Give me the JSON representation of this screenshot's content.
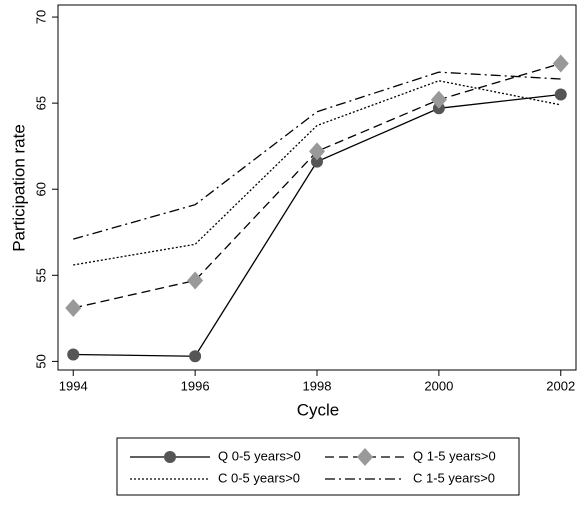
{
  "chart_data": {
    "type": "line",
    "x_label": "Cycle",
    "y_label": "Participation rate",
    "x": [
      1994,
      1996,
      1998,
      2000,
      2002
    ],
    "xlim": [
      1993.75,
      2002.25
    ],
    "xticks": [
      1994,
      1996,
      1998,
      2000,
      2002
    ],
    "ylim": [
      49.5,
      70.7
    ],
    "yticks": [
      50,
      55,
      60,
      65,
      70
    ],
    "grid": false,
    "legend": "bottom",
    "series": [
      {
        "name": "Q 0-5 years>0",
        "color": "#000000",
        "style": "solid",
        "marker": "circle",
        "marker_color": "#555555",
        "values": [
          50.4,
          50.3,
          61.6,
          64.7,
          65.5
        ]
      },
      {
        "name": "Q 1-5 years>0",
        "color": "#000000",
        "style": "dashed",
        "marker": "diamond",
        "marker_color": "#999999",
        "values": [
          53.1,
          54.7,
          62.2,
          65.2,
          67.3
        ]
      },
      {
        "name": "C 0-5 years>0",
        "color": "#000000",
        "style": "dotted",
        "values": [
          55.6,
          56.8,
          63.7,
          66.3,
          64.9
        ]
      },
      {
        "name": "C 1-5 years>0",
        "color": "#000000",
        "style": "dashdot",
        "values": [
          57.1,
          59.1,
          64.5,
          66.8,
          66.4
        ]
      }
    ]
  }
}
